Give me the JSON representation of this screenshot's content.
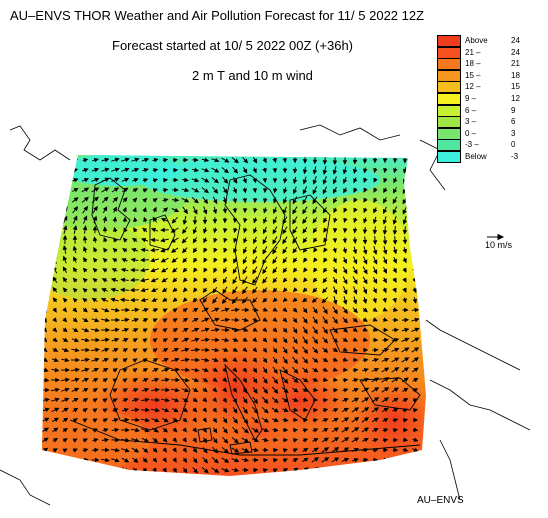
{
  "header": {
    "title": "AU–ENVS THOR Weather and Air Pollution Forecast for 11/ 5 2022  12Z",
    "subtitle": "Forecast started at 10/ 5 2022  00Z (+36h)",
    "field": "2 m T and 10 m wind"
  },
  "legend": {
    "items": [
      {
        "left": "Above",
        "right": "24",
        "color": "#f03c1e"
      },
      {
        "left": "21 –",
        "right": "24",
        "color": "#f5501e"
      },
      {
        "left": "18 –",
        "right": "21",
        "color": "#f5781e"
      },
      {
        "left": "15 –",
        "right": "18",
        "color": "#f5961e"
      },
      {
        "left": "12 –",
        "right": "15",
        "color": "#f5be1e"
      },
      {
        "left": "9 –",
        "right": "12",
        "color": "#f5f01e"
      },
      {
        "left": "6 –",
        "right": "9",
        "color": "#c8f032"
      },
      {
        "left": "3 –",
        "right": "6",
        "color": "#a0e646"
      },
      {
        "left": "0 –",
        "right": "3",
        "color": "#78e66e"
      },
      {
        "left": "-3 –",
        "right": "0",
        "color": "#50e6a0"
      },
      {
        "left": "Below",
        "right": "-3",
        "color": "#3cf0dc"
      }
    ]
  },
  "wind_reference": "10 m/s",
  "footer": "AU–ENVS",
  "colors": {
    "ocean_outline": "#000000",
    "background": "#ffffff"
  }
}
